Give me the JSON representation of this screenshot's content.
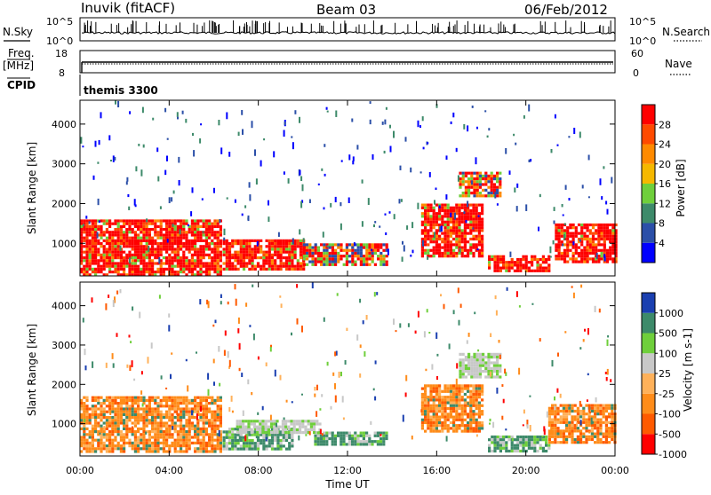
{
  "header": {
    "station": "Inuvik (fitACF)",
    "beam": "Beam 03",
    "date": "06/Feb/2012"
  },
  "top_panels": {
    "nsky_label": "N.Sky",
    "nsearch_label": "N.Search",
    "noise_ticks_left": [
      "10^5",
      "10^0"
    ],
    "noise_ticks_right": [
      "10^5",
      "10^0"
    ],
    "freq_label_line1": "Freq.",
    "freq_label_line2": "[MHz]",
    "freq_ticks": [
      "18",
      "8"
    ],
    "nave_label": "Nave",
    "nave_ticks": [
      "60",
      "0"
    ],
    "cpid_label": "CPID",
    "cpid_value": "themis 3300"
  },
  "colors": {
    "power_scale": [
      "#0000ff",
      "#2b4fa8",
      "#3d8a6a",
      "#6fcf3b",
      "#f5b800",
      "#ff8a00",
      "#ff4a00",
      "#ff0000"
    ],
    "velocity_scale": [
      "#ff0000",
      "#ff5a00",
      "#ff8c1a",
      "#ffb15a",
      "#c8c8c8",
      "#6fcf3b",
      "#3d8a6a",
      "#1a3fb0"
    ]
  },
  "chart_data": [
    {
      "type": "heatmap",
      "title": "",
      "xlabel": "",
      "ylabel": "Slant Range [km]",
      "ylim": [
        180,
        4600
      ],
      "y_ticks": [
        "1000",
        "2000",
        "3000",
        "4000"
      ],
      "x_ticks": [
        "00:00",
        "04:00",
        "08:00",
        "12:00",
        "16:00",
        "20:00",
        "00:00"
      ],
      "colorbar_label": "Power [dB]",
      "colorbar_ticks": [
        "4",
        "8",
        "12",
        "16",
        "20",
        "24",
        "28"
      ],
      "regions": [
        {
          "t0": 0.0,
          "t1": 6.3,
          "r0": 200,
          "r1": 1600,
          "value": "high"
        },
        {
          "t0": 6.4,
          "t1": 10.0,
          "r0": 350,
          "r1": 1100,
          "value": "high"
        },
        {
          "t0": 10.0,
          "t1": 13.8,
          "r0": 450,
          "r1": 1000,
          "value": "moderate"
        },
        {
          "t0": 15.3,
          "t1": 18.0,
          "r0": 700,
          "r1": 2000,
          "value": "high"
        },
        {
          "t0": 17.0,
          "t1": 18.8,
          "r0": 2200,
          "r1": 2800,
          "value": "moderate"
        },
        {
          "t0": 18.3,
          "t1": 21.0,
          "r0": 300,
          "r1": 700,
          "value": "high"
        },
        {
          "t0": 21.3,
          "t1": 24.0,
          "r0": 500,
          "r1": 1500,
          "value": "high"
        }
      ]
    },
    {
      "type": "heatmap",
      "title": "",
      "xlabel": "Time UT",
      "ylabel": "Slant Range [km]",
      "ylim": [
        180,
        4600
      ],
      "y_ticks": [
        "1000",
        "2000",
        "3000",
        "4000"
      ],
      "x_ticks": [
        "00:00",
        "04:00",
        "08:00",
        "12:00",
        "16:00",
        "20:00",
        "00:00"
      ],
      "colorbar_label": "Velocity [m s-1]",
      "colorbar_ticks": [
        "1000",
        "500",
        "100",
        "25",
        "-25",
        "-100",
        "-500",
        "-1000"
      ],
      "regions": [
        {
          "t0": 0.0,
          "t1": 6.3,
          "r0": 300,
          "r1": 1700,
          "value": "negative"
        },
        {
          "t0": 6.4,
          "t1": 9.5,
          "r0": 350,
          "r1": 900,
          "value": "positive"
        },
        {
          "t0": 7.0,
          "t1": 10.8,
          "r0": 800,
          "r1": 1100,
          "value": "near-zero"
        },
        {
          "t0": 10.5,
          "t1": 13.8,
          "r0": 500,
          "r1": 800,
          "value": "positive"
        },
        {
          "t0": 15.3,
          "t1": 18.0,
          "r0": 800,
          "r1": 2000,
          "value": "negative"
        },
        {
          "t0": 17.0,
          "t1": 18.8,
          "r0": 2200,
          "r1": 2800,
          "value": "near-zero"
        },
        {
          "t0": 18.3,
          "t1": 21.0,
          "r0": 300,
          "r1": 700,
          "value": "positive"
        },
        {
          "t0": 21.0,
          "t1": 24.0,
          "r0": 500,
          "r1": 1500,
          "value": "negative"
        }
      ]
    }
  ]
}
